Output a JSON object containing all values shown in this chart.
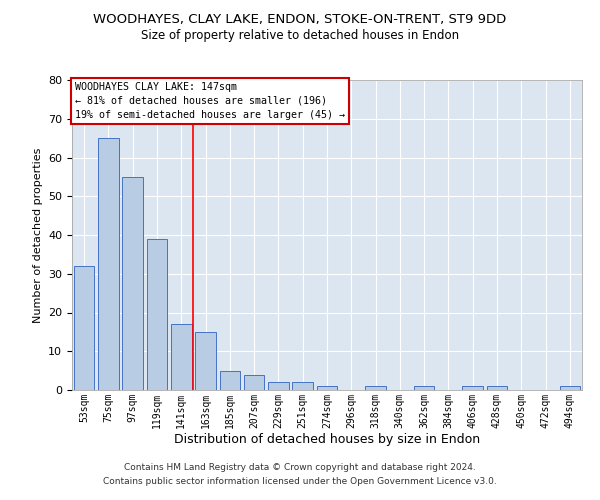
{
  "title": "WOODHAYES, CLAY LAKE, ENDON, STOKE-ON-TRENT, ST9 9DD",
  "subtitle": "Size of property relative to detached houses in Endon",
  "xlabel": "Distribution of detached houses by size in Endon",
  "ylabel": "Number of detached properties",
  "categories": [
    "53sqm",
    "75sqm",
    "97sqm",
    "119sqm",
    "141sqm",
    "163sqm",
    "185sqm",
    "207sqm",
    "229sqm",
    "251sqm",
    "274sqm",
    "296sqm",
    "318sqm",
    "340sqm",
    "362sqm",
    "384sqm",
    "406sqm",
    "428sqm",
    "450sqm",
    "472sqm",
    "494sqm"
  ],
  "values": [
    32,
    65,
    55,
    39,
    17,
    15,
    5,
    4,
    2,
    2,
    1,
    0,
    1,
    0,
    1,
    0,
    1,
    1,
    0,
    0,
    1
  ],
  "bar_color": "#b8cce4",
  "bar_edge_color": "#4472c4",
  "plot_bg_color": "#dce6f1",
  "grid_color": "#ffffff",
  "red_line_index": 4,
  "annotation_line1": "WOODHAYES CLAY LAKE: 147sqm",
  "annotation_line2": "← 81% of detached houses are smaller (196)",
  "annotation_line3": "19% of semi-detached houses are larger (45) →",
  "annotation_box_color": "#ffffff",
  "annotation_box_edge": "#cc0000",
  "ylim": [
    0,
    80
  ],
  "yticks": [
    0,
    10,
    20,
    30,
    40,
    50,
    60,
    70,
    80
  ],
  "footer_line1": "Contains HM Land Registry data © Crown copyright and database right 2024.",
  "footer_line2": "Contains public sector information licensed under the Open Government Licence v3.0."
}
